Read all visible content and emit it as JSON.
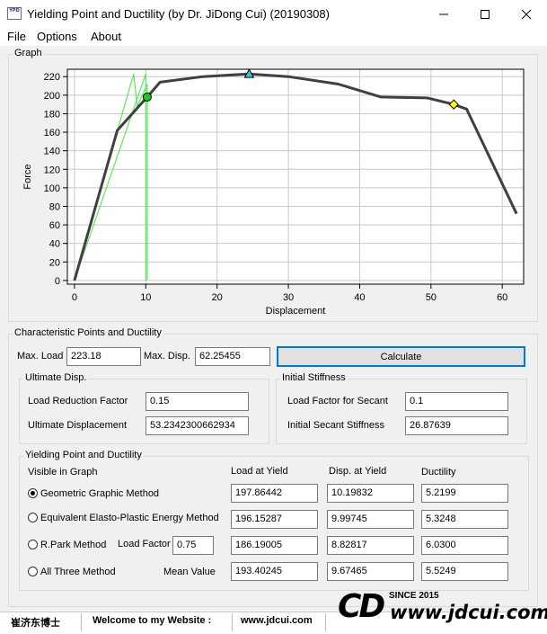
{
  "window": {
    "icon_text": "YPD",
    "title": "Yielding Point and Ductility (by Dr. JiDong Cui) (20190308)"
  },
  "menu": [
    "File",
    "Options",
    "About"
  ],
  "graph": {
    "label": "Graph"
  },
  "chart_data": {
    "type": "line",
    "xlabel": "Displacement",
    "ylabel": "Force",
    "xlim": [
      -1,
      63
    ],
    "ylim": [
      -4,
      228
    ],
    "x_ticks": [
      0,
      10,
      20,
      30,
      40,
      50,
      60
    ],
    "y_ticks": [
      0,
      20,
      40,
      60,
      80,
      100,
      120,
      140,
      160,
      180,
      200,
      220
    ],
    "grid": true,
    "series": [
      {
        "color": "#404040",
        "points": [
          [
            0,
            0
          ],
          [
            6,
            162
          ],
          [
            10.2,
            198
          ],
          [
            12,
            214
          ],
          [
            18,
            220
          ],
          [
            24.5,
            223
          ],
          [
            30,
            220
          ],
          [
            37,
            212
          ],
          [
            43,
            198
          ],
          [
            49.5,
            197
          ],
          [
            53.2,
            190
          ],
          [
            55,
            185
          ],
          [
            62,
            72
          ]
        ]
      },
      {
        "color": "#5fe65f",
        "points": [
          [
            0,
            0
          ],
          [
            8.3,
            223
          ],
          [
            8.8,
            188
          ],
          [
            10.2,
            212
          ],
          [
            10.2,
            0
          ]
        ]
      },
      {
        "color": "#5fe65f",
        "points": [
          [
            0,
            0
          ],
          [
            10,
            223
          ],
          [
            10,
            0
          ]
        ]
      }
    ],
    "markers": [
      {
        "x": 10.2,
        "y": 198,
        "shape": "circle",
        "color": "#1ec81e"
      },
      {
        "x": 24.5,
        "y": 223,
        "shape": "triangle",
        "color": "#33cccc"
      },
      {
        "x": 53.2,
        "y": 190,
        "shape": "diamond",
        "color": "#ffff00"
      }
    ]
  },
  "characteristic": {
    "label": "Characteristic Points and Ductility",
    "max_load_label": "Max. Load",
    "max_load_value": "223.18",
    "max_disp_label": "Max. Disp.",
    "max_disp_value": "62.25455",
    "calculate_label": "Calculate"
  },
  "ultimate": {
    "label": "Ultimate Disp.",
    "load_reduction_label": "Load Reduction Factor",
    "load_reduction_value": "0.15",
    "ultimate_disp_label": "Ultimate Displacement",
    "ultimate_disp_value": "53.2342300662934"
  },
  "stiffness": {
    "label": "Initial Stiffness",
    "load_factor_label": "Load Factor for Secant",
    "load_factor_value": "0.1",
    "secant_label": "Initial Secant Stiffness",
    "secant_value": "26.87639"
  },
  "yielding": {
    "label": "Yielding Point and Ductility",
    "visible_label": "Visible in Graph",
    "col_load": "Load at Yield",
    "col_disp": "Disp. at Yield",
    "col_ductility": "Ductility",
    "rows": [
      {
        "method": "Geometric Graphic Method",
        "load": "197.86442",
        "disp": "10.19832",
        "ductility": "5.2199"
      },
      {
        "method": "Equivalent Elasto-Plastic Energy Method",
        "load": "196.15287",
        "disp": "9.99745",
        "ductility": "5.3248"
      },
      {
        "method": "R.Park Method",
        "load": "186.19005",
        "disp": "8.82817",
        "ductility": "6.0300"
      },
      {
        "method": "All Three Method",
        "load": "193.40245",
        "disp": "9.67465",
        "ductility": "5.5249"
      }
    ],
    "park_factor_label": "Load Factor",
    "park_factor_value": "0.75",
    "mean_label": "Mean Value"
  },
  "status": {
    "author": "崔济东博士",
    "welcome": "Welcome to my Website :",
    "website": "www.jdcui.com"
  },
  "brand": {
    "logo": "CD",
    "since": "SINCE 2015",
    "url": "www.jdcui.com"
  }
}
